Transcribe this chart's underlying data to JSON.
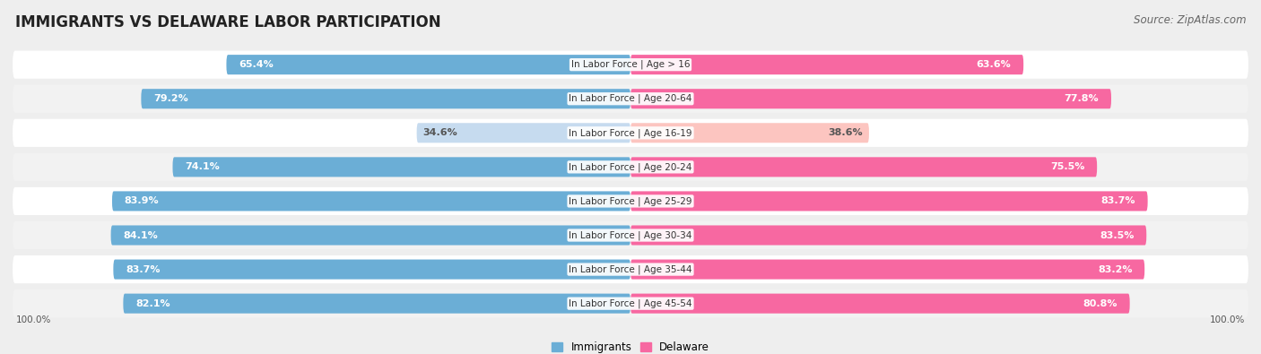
{
  "title": "IMMIGRANTS VS DELAWARE LABOR PARTICIPATION",
  "source": "Source: ZipAtlas.com",
  "categories": [
    "In Labor Force | Age > 16",
    "In Labor Force | Age 20-64",
    "In Labor Force | Age 16-19",
    "In Labor Force | Age 20-24",
    "In Labor Force | Age 25-29",
    "In Labor Force | Age 30-34",
    "In Labor Force | Age 35-44",
    "In Labor Force | Age 45-54"
  ],
  "immigrants": [
    65.4,
    79.2,
    34.6,
    74.1,
    83.9,
    84.1,
    83.7,
    82.1
  ],
  "delaware": [
    63.6,
    77.8,
    38.6,
    75.5,
    83.7,
    83.5,
    83.2,
    80.8
  ],
  "immigrant_color": "#6baed6",
  "immigrant_color_light": "#c6dbef",
  "delaware_color": "#f768a1",
  "delaware_color_light": "#fcc5c0",
  "bg_color": "#eeeeee",
  "row_colors": [
    "#ffffff",
    "#f2f2f2"
  ],
  "label_color_white": "#ffffff",
  "label_color_dark": "#555555",
  "max_val": 100.0,
  "bar_height": 0.58,
  "title_fontsize": 12,
  "source_fontsize": 8.5,
  "label_fontsize": 8,
  "category_fontsize": 7.5
}
